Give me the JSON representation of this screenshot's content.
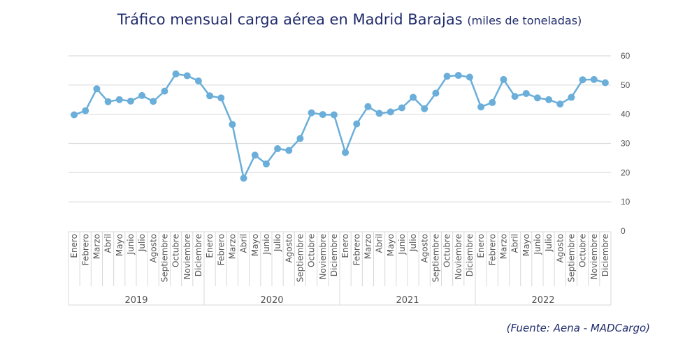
{
  "chart_data": {
    "type": "line",
    "title": "Tráfico mensual carga aérea en Madrid Barajas",
    "subtitle": "(miles de toneladas)",
    "source": "(Fuente: Aena - MADCargo)",
    "xlabel": "",
    "ylabel": "",
    "ylim": [
      0,
      60
    ],
    "yticks": [
      0,
      10,
      20,
      30,
      40,
      50,
      60
    ],
    "grid": true,
    "y_axis_side": "right",
    "color": "#6aaed9",
    "months": [
      "Enero",
      "Febrero",
      "Marzo",
      "Abril",
      "Mayo",
      "Junio",
      "Julio",
      "Agosto",
      "Septiembre",
      "Octubre",
      "Noviembre",
      "Diciembre"
    ],
    "years": [
      "2019",
      "2020",
      "2021",
      "2022"
    ],
    "values": [
      39.8,
      41.2,
      48.7,
      44.3,
      45.0,
      44.5,
      46.4,
      44.4,
      47.9,
      53.8,
      53.2,
      51.4,
      46.3,
      45.6,
      36.5,
      18.1,
      26.0,
      23.0,
      28.2,
      27.6,
      31.7,
      40.5,
      39.9,
      39.8,
      26.9,
      36.7,
      42.6,
      40.3,
      40.8,
      42.2,
      45.8,
      41.9,
      47.2,
      53.0,
      53.3,
      52.7,
      42.5,
      44.0,
      51.9,
      46.1,
      47.1,
      45.6,
      45.0,
      43.5,
      45.8,
      51.8,
      51.9,
      50.8
    ]
  }
}
